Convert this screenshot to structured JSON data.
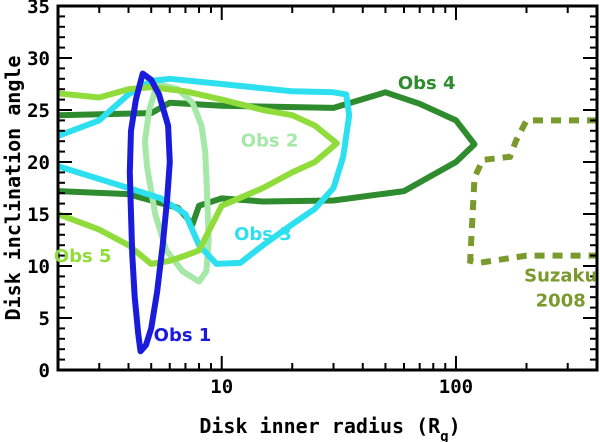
{
  "chart_data": {
    "type": "line",
    "title": "",
    "xlabel": "Disk inner radius (R",
    "xlabel_sub": "g",
    "xlabel_close": ")",
    "ylabel": "Disk inclination angle",
    "xscale": "log",
    "xlim": [
      2,
      400
    ],
    "ylim": [
      0,
      35
    ],
    "x_tick_labels": [
      {
        "value": 10,
        "label": "10"
      },
      {
        "value": 100,
        "label": "100"
      }
    ],
    "y_tick_labels": [
      {
        "value": 0,
        "label": "0"
      },
      {
        "value": 5,
        "label": "5"
      },
      {
        "value": 10,
        "label": "10"
      },
      {
        "value": 15,
        "label": "15"
      },
      {
        "value": 20,
        "label": "20"
      },
      {
        "value": 25,
        "label": "25"
      },
      {
        "value": 30,
        "label": "30"
      },
      {
        "value": 35,
        "label": "35"
      }
    ],
    "grid": false,
    "series": [
      {
        "name": "Obs 4",
        "label_lines": [
          "Obs 4"
        ],
        "label_at": {
          "x": 75,
          "y": 27.0
        },
        "color": "#2e8b2e",
        "style": "solid",
        "closed": false,
        "points": [
          [
            2,
            24.5
          ],
          [
            5,
            24.7
          ],
          [
            6,
            25.7
          ],
          [
            10,
            25.4
          ],
          [
            30,
            25.2
          ],
          [
            50,
            26.7
          ],
          [
            70,
            25.6
          ],
          [
            100,
            24.0
          ],
          [
            120,
            21.7
          ],
          [
            100,
            20.0
          ],
          [
            60,
            17.2
          ],
          [
            30,
            16.3
          ],
          [
            15,
            16.2
          ],
          [
            10,
            16.5
          ],
          [
            8,
            15.8
          ],
          [
            7.5,
            14.0
          ],
          [
            6.5,
            15.6
          ],
          [
            4,
            16.9
          ],
          [
            2,
            17.2
          ]
        ]
      },
      {
        "name": "Obs 2",
        "label_lines": [
          "Obs 2"
        ],
        "label_at": {
          "x": 16,
          "y": 21.5
        },
        "color": "#a5e8a8",
        "style": "solid",
        "closed": true,
        "points": [
          [
            5.3,
            27.5
          ],
          [
            6.5,
            27.0
          ],
          [
            7.5,
            25.7
          ],
          [
            8.2,
            23.5
          ],
          [
            8.5,
            21.0
          ],
          [
            8.6,
            18.5
          ],
          [
            8.7,
            15.5
          ],
          [
            8.8,
            12.5
          ],
          [
            8.6,
            9.5
          ],
          [
            8.0,
            8.5
          ],
          [
            6.8,
            9.5
          ],
          [
            5.8,
            11.5
          ],
          [
            5.2,
            15.0
          ],
          [
            4.8,
            19.5
          ],
          [
            4.7,
            22.0
          ],
          [
            4.9,
            25.0
          ]
        ]
      },
      {
        "name": "Obs 3",
        "label_lines": [
          "Obs 3"
        ],
        "label_at": {
          "x": 15,
          "y": 12.5
        },
        "color": "#2de0f0",
        "style": "solid",
        "closed": false,
        "points": [
          [
            2,
            22.5
          ],
          [
            3,
            24.0
          ],
          [
            4,
            26.5
          ],
          [
            5,
            27.8
          ],
          [
            6,
            28.0
          ],
          [
            10,
            27.5
          ],
          [
            20,
            26.8
          ],
          [
            30,
            26.7
          ],
          [
            34,
            26.5
          ],
          [
            35,
            24.5
          ],
          [
            33,
            20.5
          ],
          [
            30,
            17.5
          ],
          [
            25,
            15.5
          ],
          [
            20,
            14.0
          ],
          [
            15,
            12.0
          ],
          [
            12,
            10.3
          ],
          [
            9.5,
            10.2
          ],
          [
            8,
            12.0
          ],
          [
            7,
            15.0
          ],
          [
            5.5,
            16.5
          ],
          [
            4,
            17.5
          ],
          [
            2,
            19.6
          ]
        ]
      },
      {
        "name": "Obs 5",
        "label_lines": [
          "Obs 5"
        ],
        "label_at": {
          "x": 2.55,
          "y": 10.4
        },
        "color": "#8fdc3a",
        "style": "solid",
        "closed": false,
        "points": [
          [
            2,
            26.6
          ],
          [
            3,
            26.2
          ],
          [
            4,
            27.0
          ],
          [
            5,
            27.2
          ],
          [
            7,
            26.8
          ],
          [
            10,
            26.0
          ],
          [
            15,
            25.0
          ],
          [
            20,
            24.5
          ],
          [
            25,
            23.5
          ],
          [
            31,
            21.8
          ],
          [
            25,
            20.0
          ],
          [
            20,
            19.0
          ],
          [
            15,
            17.5
          ],
          [
            10,
            15.8
          ],
          [
            8,
            11.5
          ],
          [
            7,
            11.0
          ],
          [
            6,
            10.5
          ],
          [
            5,
            10.2
          ],
          [
            4,
            12.0
          ],
          [
            3,
            13.5
          ],
          [
            2,
            15.0
          ]
        ]
      },
      {
        "name": "Obs 1",
        "label_lines": [
          "Obs 1"
        ],
        "label_at": {
          "x": 6.8,
          "y": 2.8
        },
        "color": "#1b1bdc",
        "style": "solid",
        "closed": true,
        "points": [
          [
            4.6,
            28.5
          ],
          [
            4.3,
            26.0
          ],
          [
            4.1,
            23.0
          ],
          [
            4.05,
            19.0
          ],
          [
            4.1,
            15.0
          ],
          [
            4.15,
            11.0
          ],
          [
            4.25,
            7.0
          ],
          [
            4.4,
            3.5
          ],
          [
            4.5,
            1.8
          ],
          [
            4.75,
            2.4
          ],
          [
            5.0,
            4.0
          ],
          [
            5.3,
            7.5
          ],
          [
            5.6,
            12.0
          ],
          [
            5.85,
            16.5
          ],
          [
            6.0,
            20.0
          ],
          [
            5.9,
            23.5
          ],
          [
            5.4,
            26.5
          ],
          [
            5.0,
            27.9
          ]
        ]
      },
      {
        "name": "Suzaku 2008",
        "label_lines": [
          "Suzaku",
          "2008"
        ],
        "label_at": {
          "x": 280,
          "y": 8.5
        },
        "color": "#7a9a2e",
        "style": "dotted",
        "closed": false,
        "points": [
          [
            400,
            24.0
          ],
          [
            200,
            24.0
          ],
          [
            180,
            22.0
          ],
          [
            170,
            20.5
          ],
          [
            130,
            20.2
          ],
          [
            120,
            18.5
          ],
          [
            115,
            10.5
          ],
          [
            125,
            10.3
          ],
          [
            200,
            11.0
          ],
          [
            400,
            11.0
          ]
        ]
      }
    ]
  }
}
